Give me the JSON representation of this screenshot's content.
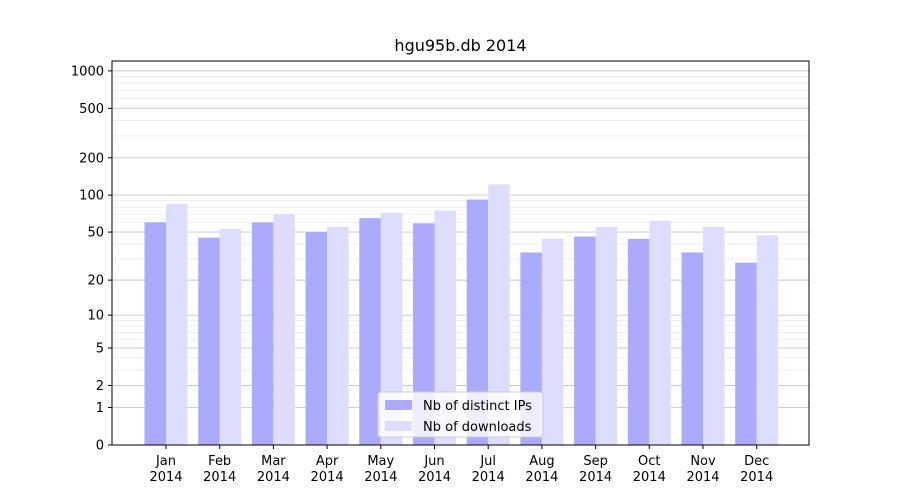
{
  "chart_data": {
    "type": "bar",
    "title": "hgu95b.db 2014",
    "xlabel": "",
    "ylabel": "",
    "y_scale": "symlog",
    "ylim": [
      0,
      1200
    ],
    "grid": "horizontal, major and minor",
    "legend_position": "lower center",
    "categories": [
      "Jan\n2014",
      "Feb\n2014",
      "Mar\n2014",
      "Apr\n2014",
      "May\n2014",
      "Jun\n2014",
      "Jul\n2014",
      "Aug\n2014",
      "Sep\n2014",
      "Oct\n2014",
      "Nov\n2014",
      "Dec\n2014"
    ],
    "y_ticks": [
      {
        "value": 0,
        "label": "0"
      },
      {
        "value": 1,
        "label": "1"
      },
      {
        "value": 2,
        "label": "2"
      },
      {
        "value": 5,
        "label": "5"
      },
      {
        "value": 10,
        "label": "10"
      },
      {
        "value": 20,
        "label": "20"
      },
      {
        "value": 50,
        "label": "50"
      },
      {
        "value": 100,
        "label": "100"
      },
      {
        "value": 200,
        "label": "200"
      },
      {
        "value": 500,
        "label": "500"
      },
      {
        "value": 1000,
        "label": "1000"
      }
    ],
    "series": [
      {
        "name": "Nb of distinct IPs",
        "color": "#aaaaff",
        "values": [
          60,
          45,
          60,
          50,
          65,
          59,
          92,
          34,
          46,
          44,
          34,
          28
        ]
      },
      {
        "name": "Nb of downloads",
        "color": "#ddddff",
        "values": [
          85,
          53,
          70,
          55,
          72,
          75,
          122,
          44,
          55,
          62,
          55,
          47
        ]
      }
    ]
  }
}
